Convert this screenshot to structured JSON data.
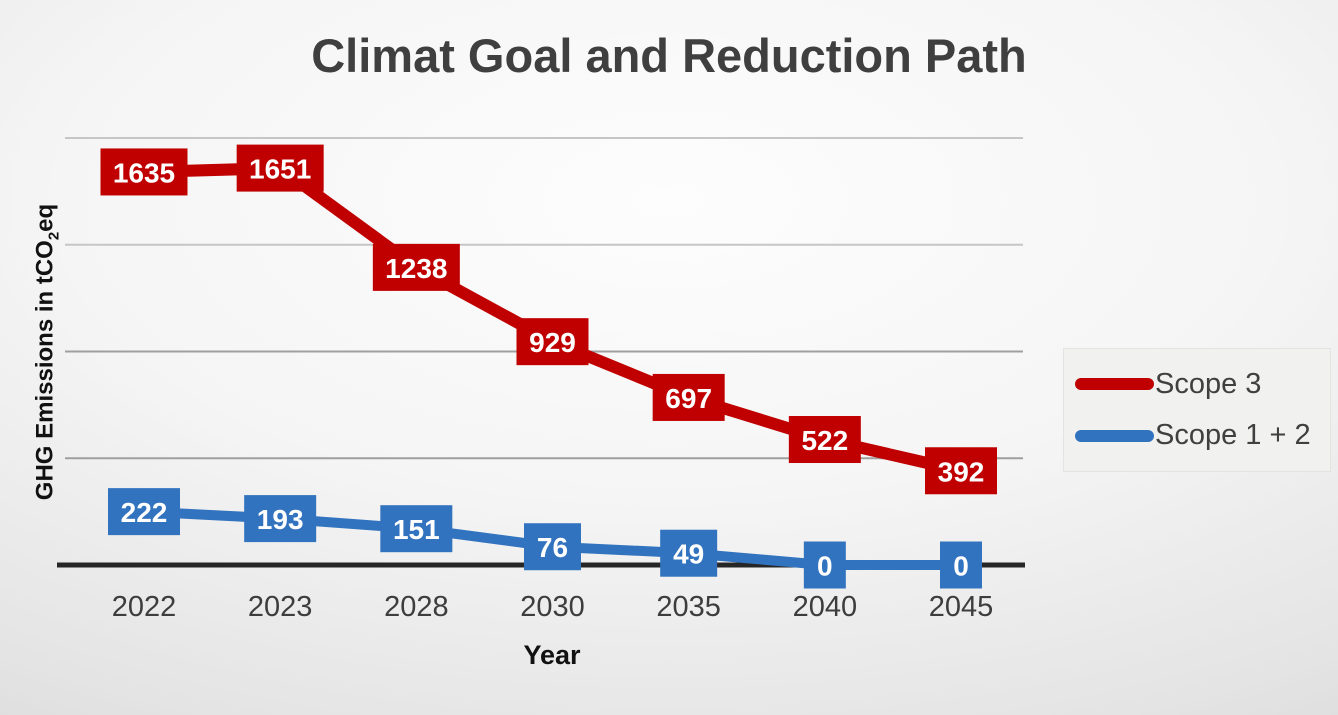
{
  "chart_data": {
    "type": "line",
    "title": "Climat Goal and Reduction Path",
    "xlabel": "Year",
    "ylabel": "GHG Emissions in tCO2eq",
    "ylabel_parts": {
      "prefix": "GHG Emissions in tCO",
      "sub": "2",
      "suffix": "eq"
    },
    "categories": [
      "2022",
      "2023",
      "2028",
      "2030",
      "2035",
      "2040",
      "2045"
    ],
    "series": [
      {
        "name": "Scope 3",
        "color": "#C00000",
        "values": [
          1635,
          1651,
          1238,
          929,
          697,
          522,
          392
        ]
      },
      {
        "name": "Scope 1 + 2",
        "color": "#3273BF",
        "values": [
          222,
          193,
          151,
          76,
          49,
          0,
          0
        ]
      }
    ],
    "ylim": [
      0,
      2000
    ],
    "gridline_values": [
      500,
      1000,
      1500,
      2000
    ],
    "grid_on": true,
    "legend_position": "right",
    "data_labels": "on",
    "data_label_text_color": "#FFFFFF",
    "axis_color": "#262626",
    "gridline_color_lower": "#9F9F9F",
    "gridline_color_upper": "#C6C6C6"
  }
}
